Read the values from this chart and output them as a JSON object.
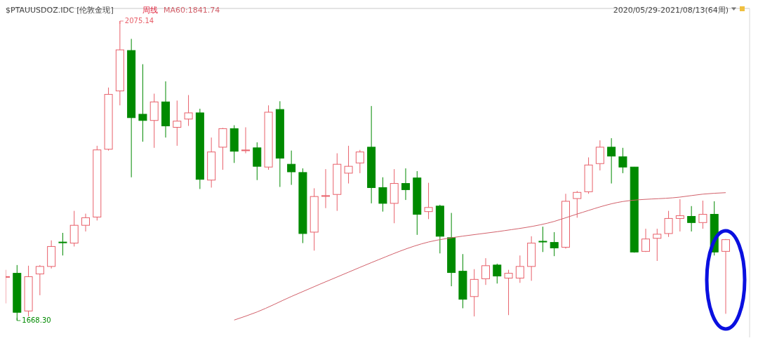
{
  "chart_data": {
    "type": "candlestick",
    "title": "$PTAUUSDOZ.IDC [伦敦金现]",
    "subtitle": "周线",
    "annotations": [
      "2020/05/29-2021/08/13(64周)",
      "2075.14",
      "1668.30"
    ],
    "categories": [
      null,
      null,
      null,
      null,
      null,
      null,
      null,
      null,
      null,
      null,
      null,
      null,
      null,
      null,
      null,
      null,
      null,
      null,
      null,
      null,
      null,
      null,
      null,
      null,
      null,
      null,
      null,
      null,
      null,
      null,
      null,
      null,
      null,
      null,
      null,
      null,
      null,
      null,
      null,
      null,
      null,
      null,
      null,
      null,
      null,
      null,
      null,
      null,
      null,
      null,
      null,
      null,
      null,
      null,
      null,
      null,
      null,
      null,
      null,
      null,
      null,
      null,
      null,
      null
    ],
    "ohlc": [
      [
        1727.5,
        1737.2,
        1691.6,
        1728.0
      ],
      [
        1732.5,
        1743.7,
        1668.3,
        1679.5
      ],
      [
        1681.3,
        1742.8,
        1673.9,
        1727.9
      ],
      [
        1731.6,
        1743.7,
        1702.7,
        1741.8
      ],
      [
        1741.8,
        1777.2,
        1739.0,
        1768.9
      ],
      [
        1774.9,
        1787.4,
        1756.7,
        1774.4
      ],
      [
        1773.5,
        1817.3,
        1768.9,
        1797.7
      ],
      [
        1797.7,
        1813.5,
        1789.3,
        1808.0
      ],
      [
        1808.9,
        1905.7,
        1804.2,
        1900.1
      ],
      [
        1901.0,
        1984.8,
        1899.2,
        1975.5
      ],
      [
        1980.2,
        2075.14,
        1960.6,
        2036.0
      ],
      [
        2035.1,
        2050.9,
        1862.9,
        1943.9
      ],
      [
        1948.5,
        2016.5,
        1911.3,
        1940.1
      ],
      [
        1940.1,
        1976.5,
        1902.9,
        1965.3
      ],
      [
        1965.3,
        1993.2,
        1916.9,
        1932.7
      ],
      [
        1930.8,
        1967.1,
        1905.7,
        1939.2
      ],
      [
        1942.0,
        1974.6,
        1932.7,
        1950.4
      ],
      [
        1950.4,
        1956.0,
        1847.0,
        1860.1
      ],
      [
        1859.1,
        1916.9,
        1848.9,
        1897.3
      ],
      [
        1903.8,
        1929.9,
        1873.1,
        1929.0
      ],
      [
        1929.0,
        1933.6,
        1882.4,
        1898.3
      ],
      [
        1899.0,
        1930.8,
        1895.5,
        1900.0
      ],
      [
        1902.9,
        1910.4,
        1859.1,
        1877.8
      ],
      [
        1876.8,
        1960.6,
        1873.1,
        1951.3
      ],
      [
        1955.0,
        1966.2,
        1849.8,
        1888.9
      ],
      [
        1880.6,
        1899.2,
        1852.6,
        1870.3
      ],
      [
        1869.4,
        1875.0,
        1773.5,
        1786.5
      ],
      [
        1788.4,
        1848.0,
        1763.3,
        1836.8
      ],
      [
        1837.0,
        1874.0,
        1821.0,
        1838.0
      ],
      [
        1839.6,
        1895.5,
        1817.3,
        1880.6
      ],
      [
        1868.5,
        1905.7,
        1854.5,
        1877.8
      ],
      [
        1882.4,
        1900.1,
        1868.5,
        1897.3
      ],
      [
        1903.8,
        1959.7,
        1827.5,
        1848.9
      ],
      [
        1848.9,
        1862.9,
        1816.3,
        1827.5
      ],
      [
        1827.5,
        1874.0,
        1800.5,
        1854.5
      ],
      [
        1854.5,
        1875.0,
        1832.1,
        1846.1
      ],
      [
        1862.0,
        1871.3,
        1784.7,
        1812.6
      ],
      [
        1816.3,
        1855.4,
        1806.1,
        1821.9
      ],
      [
        1823.8,
        1825.6,
        1759.5,
        1782.8
      ],
      [
        1780.9,
        1814.5,
        1714.9,
        1733.5
      ],
      [
        1735.3,
        1758.6,
        1685.0,
        1697.2
      ],
      [
        1700.9,
        1738.1,
        1673.9,
        1724.2
      ],
      [
        1725.1,
        1753.0,
        1716.7,
        1742.8
      ],
      [
        1743.7,
        1745.6,
        1718.6,
        1728.8
      ],
      [
        1726.0,
        1737.2,
        1675.7,
        1732.5
      ],
      [
        1726.0,
        1756.7,
        1719.5,
        1741.8
      ],
      [
        1741.8,
        1782.8,
        1722.3,
        1773.5
      ],
      [
        1776.0,
        1795.8,
        1761.4,
        1775.0
      ],
      [
        1774.4,
        1788.4,
        1755.8,
        1767.0
      ],
      [
        1767.9,
        1840.5,
        1766.0,
        1830.3
      ],
      [
        1834.0,
        1844.3,
        1808.0,
        1842.4
      ],
      [
        1843.3,
        1889.9,
        1840.5,
        1879.6
      ],
      [
        1881.5,
        1913.1,
        1872.2,
        1903.8
      ],
      [
        1903.8,
        1916.0,
        1854.5,
        1891.7
      ],
      [
        1890.8,
        1902.9,
        1868.5,
        1876.8
      ],
      [
        1876.8,
        1877.0,
        1760.5,
        1761.4
      ],
      [
        1762.3,
        1793.0,
        1761.4,
        1779.1
      ],
      [
        1780.0,
        1793.0,
        1749.3,
        1785.6
      ],
      [
        1786.5,
        1817.3,
        1781.9,
        1807.0
      ],
      [
        1807.0,
        1833.1,
        1789.3,
        1810.7
      ],
      [
        1809.8,
        1823.8,
        1789.3,
        1801.4
      ],
      [
        1801.4,
        1831.2,
        1793.0,
        1812.6
      ],
      [
        1812.6,
        1830.3,
        1756.7,
        1761.4
      ],
      [
        1762.3,
        1779.1,
        1677.5,
        1778.2
      ]
    ],
    "colors": [
      "#e8606a",
      "#008a00",
      "#e8606a",
      "#e8606a",
      "#e8606a",
      "#008a00",
      "#e8606a",
      "#e8606a",
      "#e8606a",
      "#e8606a",
      "#e8606a",
      "#008a00",
      "#008a00",
      "#e8606a",
      "#008a00",
      "#e8606a",
      "#e8606a",
      "#008a00",
      "#e8606a",
      "#e8606a",
      "#008a00",
      "#e8606a",
      "#008a00",
      "#e8606a",
      "#008a00",
      "#008a00",
      "#008a00",
      "#e8606a",
      "#e8606a",
      "#e8606a",
      "#e8606a",
      "#e8606a",
      "#008a00",
      "#008a00",
      "#e8606a",
      "#008a00",
      "#008a00",
      "#e8606a",
      "#008a00",
      "#008a00",
      "#008a00",
      "#e8606a",
      "#e8606a",
      "#008a00",
      "#e8606a",
      "#e8606a",
      "#e8606a",
      "#008a00",
      "#008a00",
      "#e8606a",
      "#e8606a",
      "#e8606a",
      "#e8606a",
      "#008a00",
      "#008a00",
      "#008a00",
      "#e8606a",
      "#e8606a",
      "#e8606a",
      "#e8606a",
      "#008a00",
      "#e8606a",
      "#008a00",
      "#e8606a"
    ],
    "series": [
      {
        "name": "MA60:1841.74",
        "type": "line",
        "color": "#d2606a",
        "values": [
          null,
          null,
          null,
          null,
          null,
          null,
          null,
          null,
          null,
          null,
          null,
          null,
          null,
          null,
          null,
          null,
          null,
          null,
          null,
          null,
          1669,
          null,
          1680,
          null,
          null,
          1701,
          null,
          null,
          null,
          null,
          1734,
          null,
          1747,
          null,
          null,
          null,
          null,
          1775,
          null,
          null,
          1783,
          null,
          null,
          1789,
          null,
          null,
          null,
          null,
          1803,
          null,
          1813,
          null,
          null,
          null,
          1830,
          null,
          null,
          null,
          null,
          1836,
          null,
          1840,
          null,
          1842
        ]
      }
    ]
  }
}
